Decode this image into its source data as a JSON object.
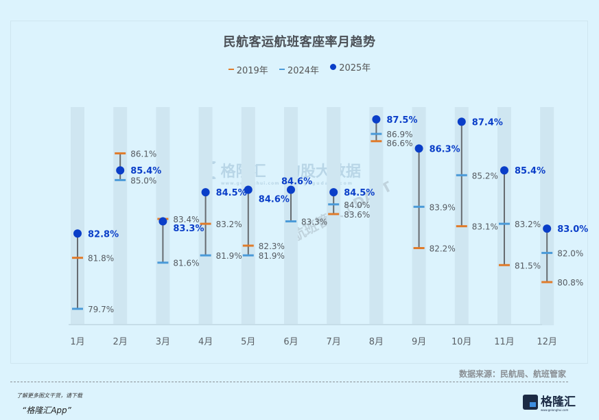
{
  "title": "民航客运航班客座率月趋势",
  "legend": [
    {
      "label": "2019年",
      "marker": "dash",
      "color": "#e07b2a"
    },
    {
      "label": "2024年",
      "marker": "dash",
      "color": "#4a9ad8"
    },
    {
      "label": "2025年",
      "marker": "dot",
      "color": "#0a3ec8"
    }
  ],
  "chart_data": {
    "type": "scatter",
    "subtype": "dumbbell-range",
    "title": "民航客运航班客座率月趋势",
    "xlabel": "",
    "ylabel": "",
    "unit": "%",
    "categories": [
      "1月",
      "2月",
      "3月",
      "4月",
      "5月",
      "6月",
      "7月",
      "8月",
      "9月",
      "10月",
      "11月",
      "12月"
    ],
    "series": [
      {
        "name": "2019年",
        "color": "#e07b2a",
        "marker": "dash",
        "values": [
          81.8,
          86.1,
          83.4,
          83.2,
          82.3,
          null,
          83.6,
          86.6,
          82.2,
          83.1,
          81.5,
          80.8
        ]
      },
      {
        "name": "2024年",
        "color": "#4a9ad8",
        "marker": "dash",
        "values": [
          79.7,
          85.0,
          81.6,
          81.9,
          81.9,
          83.3,
          84.0,
          86.9,
          83.9,
          85.2,
          83.2,
          82.0
        ]
      },
      {
        "name": "2025年",
        "color": "#0a3ec8",
        "marker": "dot",
        "values": [
          82.8,
          85.4,
          83.3,
          84.5,
          84.6,
          84.6,
          84.5,
          87.5,
          86.3,
          87.4,
          85.4,
          83.0
        ]
      }
    ],
    "ylim": [
      79.0,
      88.5
    ],
    "grid": false,
    "legend_position": "top-center",
    "range_line_color": "#666b70"
  },
  "footer": {
    "source": "数据来源：民航局、航班管家",
    "promo_line1": "了解更多图文干货，请下载",
    "promo_line2": "“格隆汇App”",
    "brand_name": "格隆汇",
    "brand_url": "www.gelonghui.com"
  },
  "watermarks": {
    "wm1": "格隆汇",
    "wm1_url": "www.gelonghui.com",
    "wm2": "勾股大数据",
    "wm2_url": "www.gogudata.com",
    "wm3": "航班管家 | DAST"
  }
}
